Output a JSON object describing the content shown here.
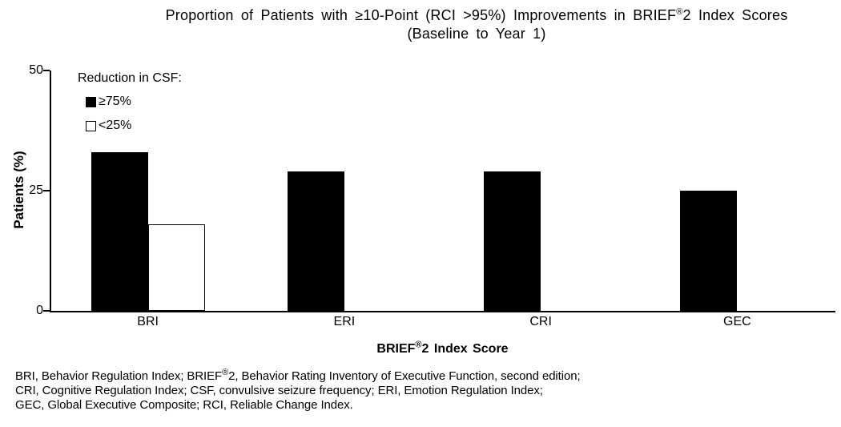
{
  "title": {
    "line1_pre": "Proportion of Patients with ≥10-Point (RCI >95%) Improvements in BRIEF",
    "line1_sup": "®",
    "line1_post": "2 Index Scores",
    "line2": "(Baseline to Year 1)"
  },
  "x_axis": {
    "label_pre": "BRIEF",
    "label_sup": "®",
    "label_post": "2 Index Score"
  },
  "chart_data": {
    "type": "bar",
    "title": "Proportion of Patients with ≥10-Point (RCI >95%) Improvements in BRIEF®2 Index Scores (Baseline to Year 1)",
    "categories": [
      "BRI",
      "ERI",
      "CRI",
      "GEC"
    ],
    "series": [
      {
        "name": "≥75%",
        "color": "#000000",
        "values": [
          33,
          29,
          29,
          25
        ]
      },
      {
        "name": "<25%",
        "color": "#ffffff",
        "values": [
          18,
          null,
          null,
          null
        ]
      }
    ],
    "legend_title": "Reduction in CSF:",
    "legend_position": "top-left",
    "xlabel": "BRIEF®2 Index Score",
    "ylabel": "Patients (%)",
    "ylim": [
      0,
      50
    ],
    "yticks": [
      0,
      25,
      50
    ],
    "grid": false
  },
  "footnote": {
    "line1_pre": "BRI, Behavior Regulation Index; BRIEF",
    "line1_sup": "®",
    "line1_post": "2, Behavior Rating Inventory of Executive Function, second edition;",
    "line2": "CRI, Cognitive Regulation Index; CSF, convulsive seizure frequency; ERI, Emotion Regulation Index;",
    "line3": "GEC, Global Executive Composite; RCI, Reliable Change Index."
  },
  "colors": {
    "background": "#ffffff",
    "text": "#000000",
    "filled_bar": "#000000",
    "hollow_bar": "#ffffff",
    "axis": "#000000"
  }
}
